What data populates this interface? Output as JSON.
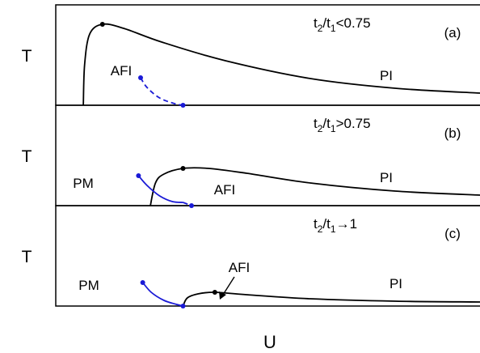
{
  "chart_data": {
    "type": "line",
    "xlabel": "U",
    "grid": false,
    "colors": {
      "phase_boundary": "#000000",
      "afi_boundary": "#1a1ad6"
    },
    "panels": [
      {
        "id": "a",
        "panel_label": "(a)",
        "ylabel": "T",
        "condition": {
          "base": "t",
          "sub2": "2",
          "slash": "/t",
          "sub1": "1",
          "rest": "<0.75"
        },
        "regions": {
          "pi": "PI",
          "afi": "AFI"
        },
        "afi_label_pointer": false,
        "black_curve": {
          "points": [
            [
              0.065,
              0.0
            ],
            [
              0.068,
              0.5
            ],
            [
              0.08,
              0.88
            ],
            [
              0.11,
              1.0
            ],
            [
              0.16,
              0.95
            ],
            [
              0.25,
              0.78
            ],
            [
              0.4,
              0.55
            ],
            [
              0.6,
              0.33
            ],
            [
              0.8,
              0.21
            ],
            [
              1.0,
              0.15
            ]
          ],
          "marker": [
            0.11,
            1.0
          ]
        },
        "blue_curve": {
          "style": "dashed",
          "points": [
            [
              0.2,
              0.34
            ],
            [
              0.215,
              0.22
            ],
            [
              0.245,
              0.09
            ],
            [
              0.28,
              0.02
            ],
            [
              0.3,
              0.0
            ]
          ],
          "markers": [
            [
              0.2,
              0.34
            ],
            [
              0.3,
              0.0
            ]
          ]
        }
      },
      {
        "id": "b",
        "panel_label": "(b)",
        "ylabel": "T",
        "condition": {
          "base": "t",
          "sub2": "2",
          "slash": "/t",
          "sub1": "1",
          "rest": ">0.75"
        },
        "regions": {
          "pm": "PM",
          "pi": "PI",
          "afi": "AFI"
        },
        "afi_label_pointer": false,
        "black_curve": {
          "points": [
            [
              0.223,
              0.0
            ],
            [
              0.235,
              0.28
            ],
            [
              0.255,
              0.39
            ],
            [
              0.3,
              0.46
            ],
            [
              0.36,
              0.46
            ],
            [
              0.45,
              0.4
            ],
            [
              0.6,
              0.28
            ],
            [
              0.8,
              0.18
            ],
            [
              1.0,
              0.13
            ]
          ],
          "marker": [
            0.3,
            0.46
          ]
        },
        "blue_curve": {
          "style": "solid",
          "points": [
            [
              0.195,
              0.37
            ],
            [
              0.215,
              0.25
            ],
            [
              0.245,
              0.12
            ],
            [
              0.275,
              0.05
            ],
            [
              0.3,
              0.04
            ]
          ],
          "markers": [
            [
              0.195,
              0.37
            ]
          ]
        },
        "blue_dashed_tail": {
          "style": "dashed",
          "points": [
            [
              0.3,
              0.04
            ],
            [
              0.32,
              0.0
            ]
          ],
          "markers": [
            [
              0.32,
              0.0
            ]
          ]
        }
      },
      {
        "id": "c",
        "panel_label": "(c)",
        "ylabel": "T",
        "condition": {
          "base": "t",
          "sub2": "2",
          "slash": "/t",
          "sub1": "1",
          "rest": "→1"
        },
        "regions": {
          "pm": "PM",
          "pi": "PI",
          "afi": "AFI"
        },
        "afi_label_pointer": true,
        "black_curve": {
          "points": [
            [
              0.3,
              0.0
            ],
            [
              0.31,
              0.1
            ],
            [
              0.335,
              0.15
            ],
            [
              0.375,
              0.17
            ],
            [
              0.45,
              0.14
            ],
            [
              0.6,
              0.09
            ],
            [
              0.8,
              0.06
            ],
            [
              1.0,
              0.05
            ]
          ],
          "marker": [
            0.375,
            0.17
          ]
        },
        "blue_curve": {
          "style": "solid",
          "points": [
            [
              0.205,
              0.29
            ],
            [
              0.225,
              0.17
            ],
            [
              0.255,
              0.07
            ],
            [
              0.285,
              0.02
            ],
            [
              0.3,
              0.0
            ]
          ],
          "markers": [
            [
              0.205,
              0.29
            ],
            [
              0.3,
              0.0
            ]
          ]
        }
      }
    ]
  }
}
